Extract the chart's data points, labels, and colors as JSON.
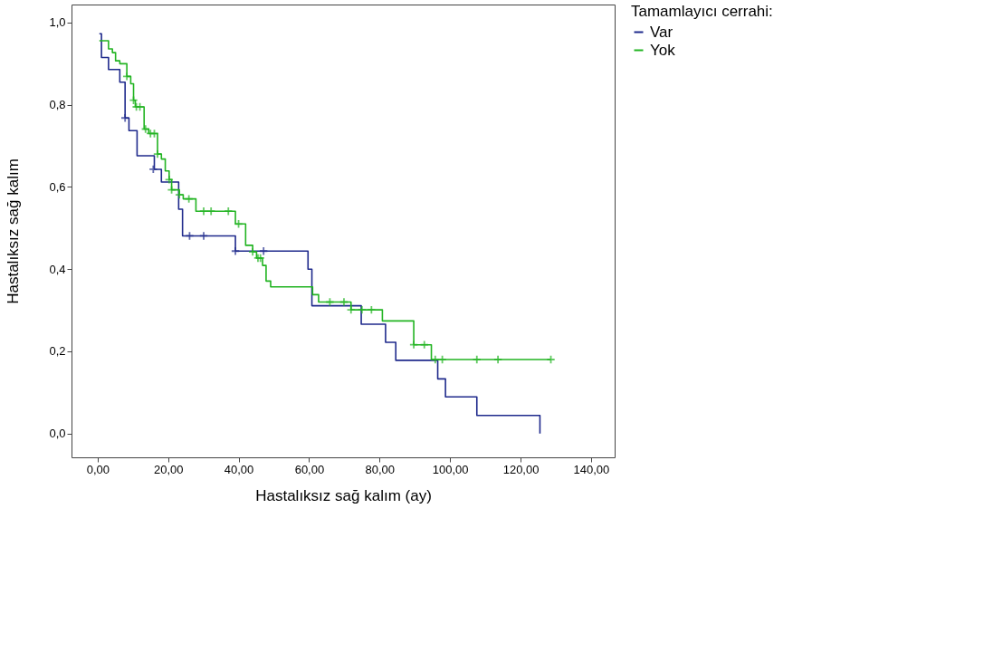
{
  "chart_data": {
    "type": "step",
    "xlabel": "Hastalıksız sağ kalım (ay)",
    "ylabel": "Hastalıksız  sağ kalım",
    "legend_title": "Tamamlayıcı cerrahi:",
    "legend": "top right",
    "grid": false,
    "xlim": [
      -7.4,
      146.7
    ],
    "ylim": [
      -0.058,
      1.044
    ],
    "xticks": [
      {
        "value": 0,
        "label": "0,00"
      },
      {
        "value": 20,
        "label": "20,00"
      },
      {
        "value": 40,
        "label": "40,00"
      },
      {
        "value": 60,
        "label": "60,00"
      },
      {
        "value": 80,
        "label": "80,00"
      },
      {
        "value": 100,
        "label": "100,00"
      },
      {
        "value": 120,
        "label": "120,00"
      },
      {
        "value": 140,
        "label": "140,00"
      }
    ],
    "yticks": [
      {
        "value": 0,
        "label": "0,0"
      },
      {
        "value": 0.2,
        "label": "0,2"
      },
      {
        "value": 0.4,
        "label": "0,4"
      },
      {
        "value": 0.6,
        "label": "0,6"
      },
      {
        "value": 0.8,
        "label": "0,8"
      },
      {
        "value": 1,
        "label": "1,0"
      }
    ],
    "series": [
      {
        "name": "Var",
        "color": "#1f2a8c",
        "x": [
          0.5,
          1.1,
          3.1,
          6.3,
          7.8,
          8.9,
          11.2,
          16.1,
          18.1,
          23.0,
          24.1,
          39.1,
          59.7,
          60.8,
          74.8,
          81.7,
          84.6,
          96.5,
          98.7,
          107.6,
          125.5
        ],
        "values": [
          0.973,
          0.915,
          0.886,
          0.855,
          0.768,
          0.737,
          0.676,
          0.643,
          0.612,
          0.546,
          0.481,
          0.444,
          0.4,
          0.311,
          0.266,
          0.222,
          0.178,
          0.133,
          0.089,
          0.044,
          0.0
        ]
      },
      {
        "name": "Yok",
        "color": "#22b422",
        "x": [
          0.5,
          3.1,
          4.2,
          5.1,
          6.3,
          8.3,
          9.4,
          10.2,
          10.7,
          13.2,
          14.5,
          17.0,
          18.1,
          19.2,
          20.3,
          21.0,
          23.2,
          24.3,
          27.9,
          39.1,
          42.0,
          44.0,
          45.1,
          46.8,
          47.8,
          49.1,
          61.0,
          62.7,
          71.9,
          80.8,
          89.7,
          94.7,
          128.6
        ],
        "values": [
          0.956,
          0.936,
          0.927,
          0.907,
          0.9,
          0.869,
          0.851,
          0.811,
          0.795,
          0.741,
          0.73,
          0.68,
          0.668,
          0.639,
          0.618,
          0.593,
          0.581,
          0.571,
          0.541,
          0.51,
          0.458,
          0.442,
          0.427,
          0.409,
          0.371,
          0.357,
          0.338,
          0.32,
          0.301,
          0.274,
          0.216,
          0.18,
          0.18
        ]
      },
      {
        "type": "scatter",
        "marker": "cross",
        "color": "#1f2a8c",
        "x": [
          7.8,
          15.8,
          26.1,
          30.1,
          39.1,
          47.1
        ],
        "values": [
          0.768,
          0.643,
          0.481,
          0.481,
          0.444,
          0.444
        ]
      },
      {
        "type": "scatter",
        "marker": "cross",
        "color": "#22b422",
        "x": [
          8.3,
          10.2,
          11.0,
          12.0,
          13.6,
          15.0,
          16.1,
          17.0,
          20.3,
          21.0,
          23.2,
          25.9,
          30.1,
          32.2,
          37.1,
          40.0,
          44.0,
          45.5,
          46.2,
          65.9,
          69.9,
          71.9,
          75.0,
          77.7,
          89.7,
          92.7,
          95.8,
          97.8,
          107.6,
          113.6,
          128.6
        ],
        "values": [
          0.869,
          0.811,
          0.795,
          0.795,
          0.741,
          0.73,
          0.73,
          0.68,
          0.618,
          0.593,
          0.581,
          0.571,
          0.541,
          0.541,
          0.541,
          0.51,
          0.442,
          0.427,
          0.427,
          0.32,
          0.32,
          0.301,
          0.301,
          0.301,
          0.216,
          0.216,
          0.18,
          0.18,
          0.18,
          0.18,
          0.18
        ]
      }
    ]
  }
}
